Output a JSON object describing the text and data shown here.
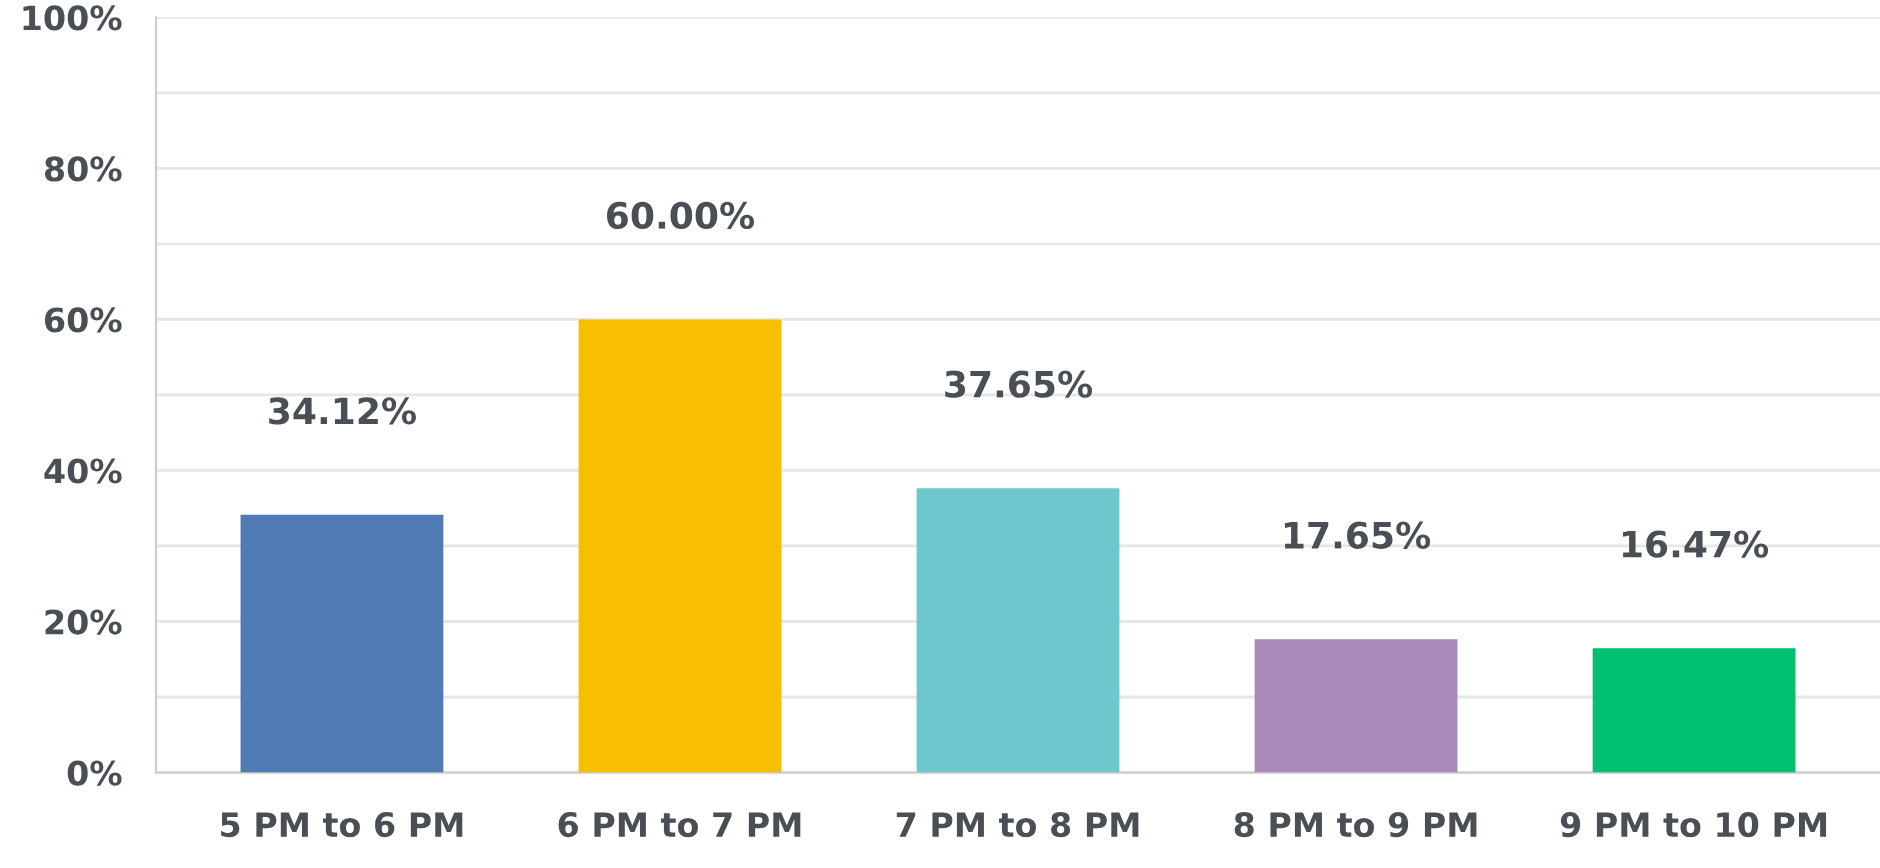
{
  "chart_data": {
    "type": "bar",
    "categories": [
      "5 PM to 6 PM",
      "6 PM to 7 PM",
      "7 PM to 8 PM",
      "8 PM to 9 PM",
      "9 PM to 10 PM"
    ],
    "values": [
      34.12,
      60.0,
      37.65,
      17.65,
      16.47
    ],
    "colors": [
      "#4f7cb5",
      "#f8bf00",
      "#6cc8cc",
      "#a988ba",
      "#00bf6f"
    ],
    "value_labels": [
      "34.12%",
      "60.00%",
      "37.65%",
      "17.65%",
      "16.47%"
    ],
    "ylim": [
      0,
      100
    ],
    "yticks": [
      {
        "value": 0,
        "label": "0%"
      },
      {
        "value": 10,
        "label": null
      },
      {
        "value": 20,
        "label": "20%"
      },
      {
        "value": 30,
        "label": null
      },
      {
        "value": 40,
        "label": "40%"
      },
      {
        "value": 50,
        "label": null
      },
      {
        "value": 60,
        "label": "60%"
      },
      {
        "value": 70,
        "label": null
      },
      {
        "value": 80,
        "label": "80%"
      },
      {
        "value": 90,
        "label": null
      },
      {
        "value": 100,
        "label": "100%"
      }
    ],
    "grid": "y"
  }
}
